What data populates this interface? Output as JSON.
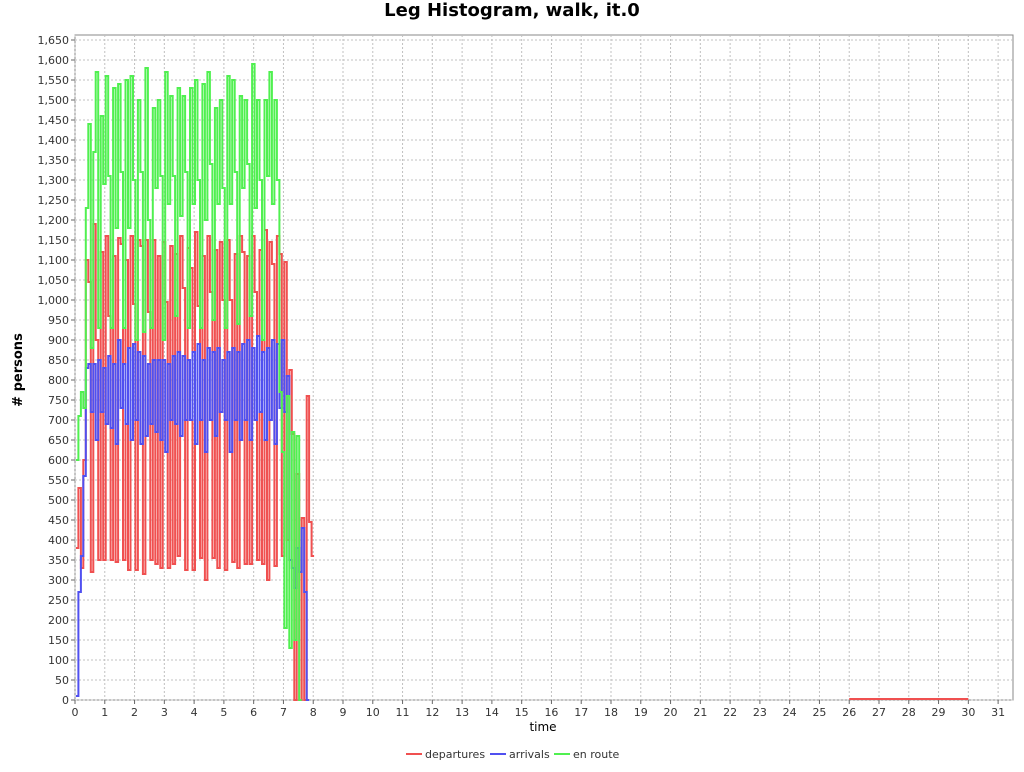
{
  "chart_data": {
    "type": "line",
    "title": "Leg Histogram, walk, it.0",
    "xlabel": "time",
    "ylabel": "# persons",
    "xlim": [
      0,
      31.5
    ],
    "ylim": [
      0,
      1650
    ],
    "x_ticks": [
      0,
      1,
      2,
      3,
      4,
      5,
      6,
      7,
      8,
      9,
      10,
      11,
      12,
      13,
      14,
      15,
      16,
      17,
      18,
      19,
      20,
      21,
      22,
      23,
      24,
      25,
      26,
      27,
      28,
      29,
      30,
      31
    ],
    "y_ticks": [
      0,
      50,
      100,
      150,
      200,
      250,
      300,
      350,
      400,
      450,
      500,
      550,
      600,
      650,
      700,
      750,
      800,
      850,
      900,
      950,
      1000,
      1050,
      1100,
      1150,
      1200,
      1250,
      1300,
      1350,
      1400,
      1450,
      1500,
      1550,
      1600,
      1650
    ],
    "y_tick_labels": [
      "0",
      "50",
      "100",
      "150",
      "200",
      "250",
      "300",
      "350",
      "400",
      "450",
      "500",
      "550",
      "600",
      "650",
      "700",
      "750",
      "800",
      "850",
      "900",
      "950",
      "1,000",
      "1,050",
      "1,100",
      "1,150",
      "1,200",
      "1,250",
      "1,300",
      "1,350",
      "1,400",
      "1,450",
      "1,500",
      "1,550",
      "1,600",
      "1,650"
    ],
    "grid": true,
    "legend_position": "bottom",
    "bin_width_hours": 0.08333,
    "series": [
      {
        "name": "departures",
        "color": "#f05050",
        "values": [
          380,
          530,
          330,
          600,
          1100,
          1045,
          320,
          1190,
          900,
          350,
          1120,
          350,
          1160,
          960,
          350,
          1110,
          345,
          1155,
          1140,
          350,
          1100,
          325,
          1160,
          990,
          325,
          1150,
          1135,
          315,
          1150,
          970,
          350,
          1150,
          340,
          1110,
          330,
          1145,
          995,
          330,
          1135,
          340,
          1115,
          360,
          1160,
          1030,
          325,
          1130,
          1080,
          325,
          1170,
          985,
          355,
          1110,
          300,
          1160,
          1020,
          355,
          1125,
          330,
          1145,
          1000,
          325,
          1150,
          1000,
          345,
          1115,
          330,
          1160,
          1120,
          340,
          1110,
          340,
          1160,
          1020,
          350,
          1125,
          340,
          1175,
          300,
          1145,
          1090,
          335,
          1160,
          1115,
          360,
          1095,
          400,
          825,
          665,
          0,
          565,
          0,
          455,
          0,
          760,
          445,
          360
        ]
      },
      {
        "name": "arrivals",
        "color": "#5050f0",
        "values": [
          10,
          270,
          360,
          560,
          830,
          840,
          720,
          840,
          650,
          850,
          720,
          830,
          690,
          860,
          680,
          840,
          640,
          900,
          730,
          840,
          690,
          880,
          650,
          890,
          700,
          870,
          640,
          860,
          660,
          840,
          690,
          850,
          670,
          850,
          650,
          850,
          620,
          840,
          700,
          860,
          690,
          870,
          660,
          860,
          700,
          850,
          700,
          870,
          640,
          890,
          700,
          850,
          620,
          880,
          700,
          870,
          660,
          880,
          720,
          850,
          700,
          870,
          620,
          880,
          700,
          870,
          650,
          890,
          700,
          900,
          650,
          880,
          700,
          910,
          720,
          870,
          650,
          880,
          700,
          900,
          640,
          890,
          730,
          900,
          720,
          810,
          350,
          330,
          280,
          380,
          320,
          430,
          270,
          0
        ]
      },
      {
        "name": "en route",
        "color": "#50f050",
        "values": [
          600,
          710,
          770,
          730,
          1230,
          1440,
          880,
          1370,
          1570,
          930,
          1460,
          1290,
          1560,
          1310,
          930,
          1530,
          1180,
          1540,
          1320,
          930,
          1550,
          1180,
          1560,
          1300,
          900,
          1500,
          1320,
          920,
          1580,
          1200,
          930,
          1480,
          1280,
          1500,
          1310,
          900,
          1570,
          1240,
          1510,
          1310,
          960,
          1530,
          1210,
          1510,
          1320,
          930,
          1530,
          1240,
          1550,
          1300,
          930,
          1540,
          1200,
          1570,
          1340,
          950,
          1480,
          1240,
          1500,
          1280,
          930,
          1560,
          1240,
          1550,
          1320,
          940,
          1510,
          1280,
          1500,
          1340,
          960,
          1590,
          1230,
          1500,
          1300,
          900,
          1500,
          1310,
          1570,
          1240,
          1500,
          1300,
          770,
          620,
          180,
          760,
          130,
          670,
          150,
          660,
          0
        ]
      }
    ]
  },
  "legend": {
    "departures": "departures",
    "arrivals": "arrivals",
    "en_route": "en route"
  }
}
